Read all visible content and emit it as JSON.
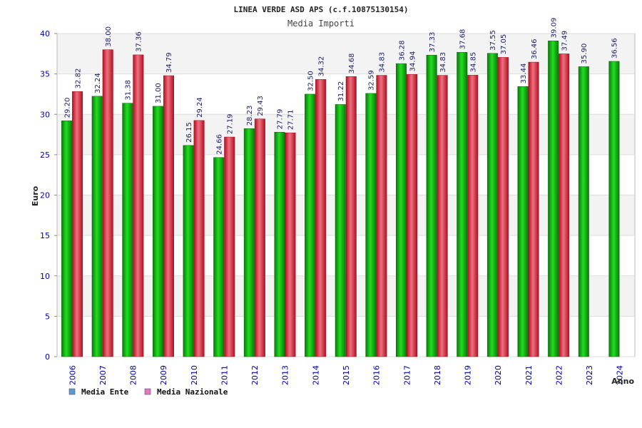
{
  "chart_data": {
    "type": "bar",
    "title": "LINEA VERDE ASD APS (c.f.10875130154)",
    "subtitle": "Media Importi",
    "ylabel": "Euro",
    "xlabel": "Anno",
    "ylim": [
      0,
      40
    ],
    "yticks": [
      0,
      5,
      10,
      15,
      20,
      25,
      30,
      35,
      40
    ],
    "grid": true,
    "legend_position": "bottom-left",
    "categories": [
      "2006",
      "2007",
      "2008",
      "2009",
      "2010",
      "2011",
      "2012",
      "2013",
      "2014",
      "2015",
      "2016",
      "2017",
      "2018",
      "2019",
      "2020",
      "2021",
      "2022",
      "2023",
      "2024"
    ],
    "series": [
      {
        "name": "Media Ente",
        "legend_color": "#5b9bd5",
        "color": "#11aa11",
        "values": [
          29.2,
          32.24,
          31.38,
          31.0,
          26.15,
          24.66,
          28.23,
          27.79,
          32.5,
          31.22,
          32.59,
          36.28,
          37.33,
          37.68,
          37.55,
          33.44,
          39.09,
          35.9,
          36.56
        ],
        "labels": [
          "29.20",
          "32.24",
          "31.38",
          "31.00",
          "26.15",
          "24.66",
          "28.23",
          "27.79",
          "32.50",
          "31.22",
          "32.59",
          "36.28",
          "37.33",
          "37.68",
          "37.55",
          "33.44",
          "39.09",
          "35.90",
          "36.56"
        ]
      },
      {
        "name": "Media Nazionale",
        "legend_color": "#e377c2",
        "color": "#dd2233",
        "values": [
          32.82,
          38.0,
          37.36,
          34.79,
          29.24,
          27.19,
          29.43,
          27.71,
          34.32,
          34.68,
          34.83,
          34.94,
          34.83,
          34.85,
          37.05,
          36.46,
          37.49,
          null,
          null
        ],
        "labels": [
          "32.82",
          "38.00",
          "37.36",
          "34.79",
          "29.24",
          "27.19",
          "29.43",
          "27.71",
          "34.32",
          "34.68",
          "34.83",
          "34.94",
          "34.83",
          "34.85",
          "37.05",
          "36.46",
          "37.49",
          "",
          ""
        ]
      }
    ]
  }
}
